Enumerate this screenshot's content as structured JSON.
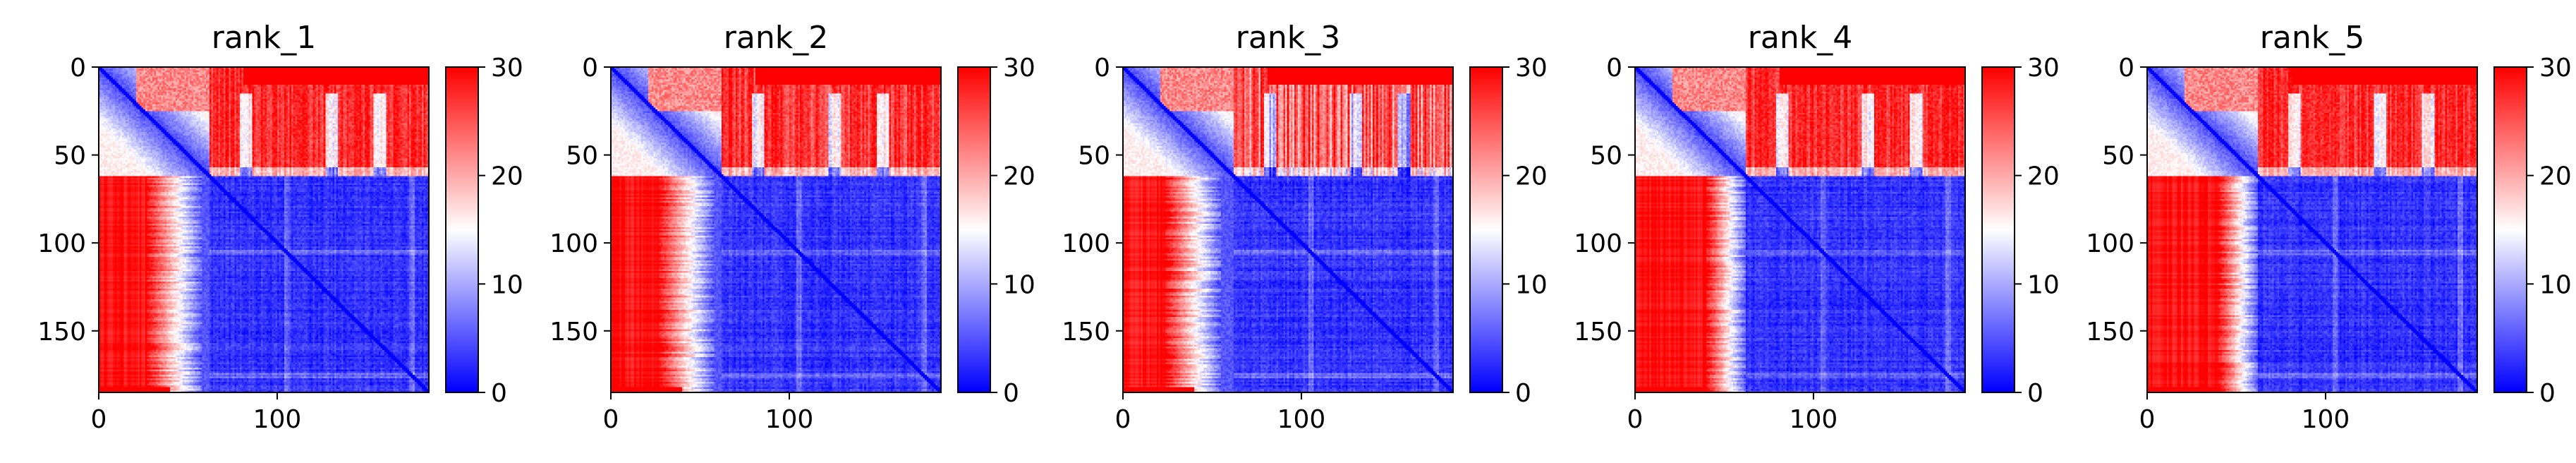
{
  "chart_data": [
    {
      "type": "heatmap",
      "title": "rank_1",
      "xlabel": "",
      "ylabel": "",
      "x_ticks": [
        "0",
        "100"
      ],
      "y_ticks": [
        "0",
        "50",
        "100",
        "150"
      ],
      "matrix_size": 185,
      "xlim": [
        0,
        185
      ],
      "ylim": [
        185,
        0
      ],
      "colorbar": {
        "ticks": [
          "0",
          "10",
          "20",
          "30"
        ],
        "range": [
          0,
          30
        ],
        "colormap": "bwr",
        "colors": [
          "#0000ff",
          "#ffffff",
          "#ff0000"
        ]
      },
      "regions": {
        "domain_boundary": 62,
        "top_right_min": 25,
        "top_right_max": 30,
        "bottom_left_edge": 27,
        "bottom_left_transition": 58,
        "lower_block_mean": 3,
        "stripe_columns": [
          82,
          130,
          157
        ]
      }
    },
    {
      "type": "heatmap",
      "title": "rank_2",
      "xlabel": "",
      "ylabel": "",
      "x_ticks": [
        "0",
        "100"
      ],
      "y_ticks": [
        "0",
        "50",
        "100",
        "150"
      ],
      "matrix_size": 185,
      "xlim": [
        0,
        185
      ],
      "ylim": [
        185,
        0
      ],
      "colorbar": {
        "ticks": [
          "0",
          "10",
          "20",
          "30"
        ],
        "range": [
          0,
          30
        ],
        "colormap": "bwr",
        "colors": [
          "#0000ff",
          "#ffffff",
          "#ff0000"
        ]
      },
      "regions": {
        "domain_boundary": 62,
        "top_right_min": 24,
        "top_right_max": 30,
        "bottom_left_edge": 27,
        "bottom_left_transition": 58,
        "lower_block_mean": 3,
        "stripe_columns": [
          82,
          125,
          152
        ]
      }
    },
    {
      "type": "heatmap",
      "title": "rank_3",
      "xlabel": "",
      "ylabel": "",
      "x_ticks": [
        "0",
        "100"
      ],
      "y_ticks": [
        "0",
        "50",
        "100",
        "150"
      ],
      "matrix_size": 185,
      "xlim": [
        0,
        185
      ],
      "ylim": [
        185,
        0
      ],
      "colorbar": {
        "ticks": [
          "0",
          "10",
          "20",
          "30"
        ],
        "range": [
          0,
          30
        ],
        "colormap": "bwr",
        "colors": [
          "#0000ff",
          "#ffffff",
          "#ff0000"
        ]
      },
      "regions": {
        "domain_boundary": 62,
        "top_right_min": 18,
        "top_right_max": 30,
        "bottom_left_edge": 24,
        "bottom_left_transition": 55,
        "lower_block_mean": 3,
        "stripe_columns": [
          82,
          130,
          157
        ]
      }
    },
    {
      "type": "heatmap",
      "title": "rank_4",
      "xlabel": "",
      "ylabel": "",
      "x_ticks": [
        "0",
        "100"
      ],
      "y_ticks": [
        "0",
        "50",
        "100",
        "150"
      ],
      "matrix_size": 185,
      "xlim": [
        0,
        185
      ],
      "ylim": [
        185,
        0
      ],
      "colorbar": {
        "ticks": [
          "0",
          "10",
          "20",
          "30"
        ],
        "range": [
          0,
          30
        ],
        "colormap": "bwr",
        "colors": [
          "#0000ff",
          "#ffffff",
          "#ff0000"
        ]
      },
      "regions": {
        "domain_boundary": 62,
        "top_right_min": 25,
        "top_right_max": 30,
        "bottom_left_edge": 40,
        "bottom_left_transition": 62,
        "lower_block_mean": 3,
        "stripe_columns": [
          82,
          130,
          157
        ]
      }
    },
    {
      "type": "heatmap",
      "title": "rank_5",
      "xlabel": "",
      "ylabel": "",
      "x_ticks": [
        "0",
        "100"
      ],
      "y_ticks": [
        "0",
        "50",
        "100",
        "150"
      ],
      "matrix_size": 185,
      "xlim": [
        0,
        185
      ],
      "ylim": [
        185,
        0
      ],
      "colorbar": {
        "ticks": [
          "0",
          "10",
          "20",
          "30"
        ],
        "range": [
          0,
          30
        ],
        "colormap": "bwr",
        "colors": [
          "#0000ff",
          "#ffffff",
          "#ff0000"
        ]
      },
      "regions": {
        "domain_boundary": 62,
        "top_right_min": 25,
        "top_right_max": 30,
        "bottom_left_edge": 40,
        "bottom_left_transition": 62,
        "lower_block_mean": 3,
        "stripe_columns": [
          82,
          130,
          157
        ]
      }
    }
  ]
}
